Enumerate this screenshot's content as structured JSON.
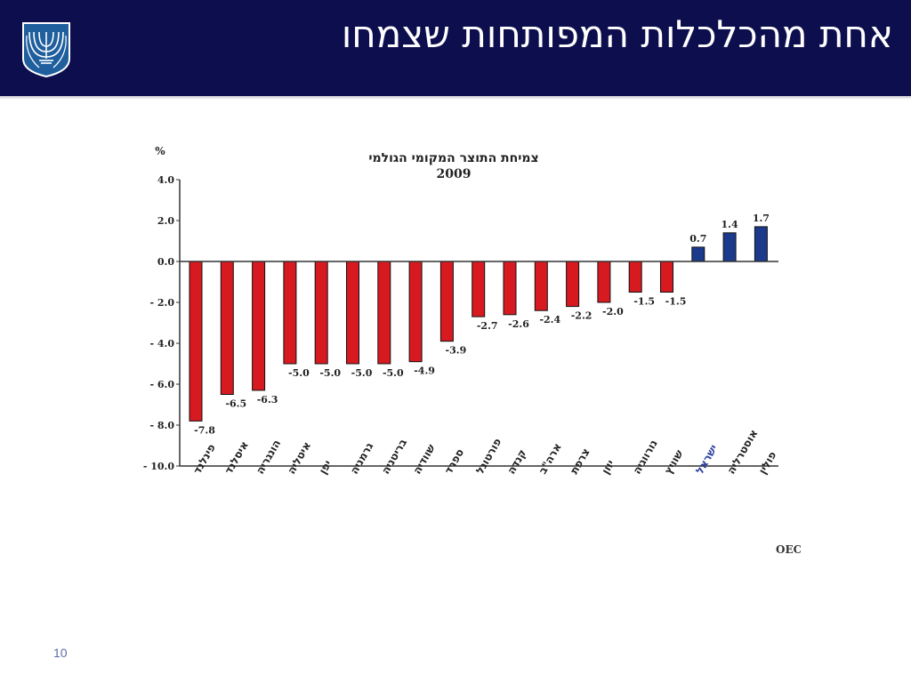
{
  "slide": {
    "title": "אחת מהכלכלות המפותחות שצמחו",
    "page_number": "10"
  },
  "colors": {
    "header_bg": "#0d0e4e",
    "negative_bar": "#d71920",
    "positive_bar": "#1b3a8c"
  },
  "chart_data": {
    "type": "bar",
    "title": "צמיחת התוצר המקומי הגולמי",
    "subtitle": "2009",
    "ylabel": "%",
    "ylim": [
      -10,
      4
    ],
    "yticks": [
      "4.0",
      "2.0",
      "0.0",
      "- 2.0",
      "- 4.0",
      "- 6.0",
      "- 8.0",
      "- 10.0"
    ],
    "ytick_values": [
      4,
      2,
      0,
      -2,
      -4,
      -6,
      -8,
      -10
    ],
    "categories": [
      "פינלנד",
      "איסלנד",
      "הונגריה",
      "איטליה",
      "יפן",
      "גרמניה",
      "בריטניה",
      "שוודיה",
      "ספרד",
      "פורטוגל",
      "קנדה",
      "ארה\"ב",
      "צרפת",
      "יוון",
      "נורווגיה",
      "שוויץ",
      "ישראל",
      "אוסטרליה",
      "פולין"
    ],
    "values": [
      -7.8,
      -6.5,
      -6.3,
      -5.0,
      -5.0,
      -5.0,
      -5.0,
      -4.9,
      -3.9,
      -2.7,
      -2.6,
      -2.4,
      -2.2,
      -2.0,
      -1.5,
      -1.5,
      0.7,
      1.4,
      1.7
    ],
    "value_labels": [
      "-7.8",
      "-6.5",
      "-6.3",
      "-5.0",
      "-5.0",
      "-5.0",
      "-5.0",
      "-4.9",
      "-3.9",
      "-2.7",
      "-2.6",
      "-2.4",
      "-2.2",
      "-2.0",
      "-1.5",
      "-1.5",
      "0.7",
      "1.4",
      "1.7"
    ],
    "highlight_category": "ישראל",
    "source": "מקור: OECD",
    "grid": false
  }
}
